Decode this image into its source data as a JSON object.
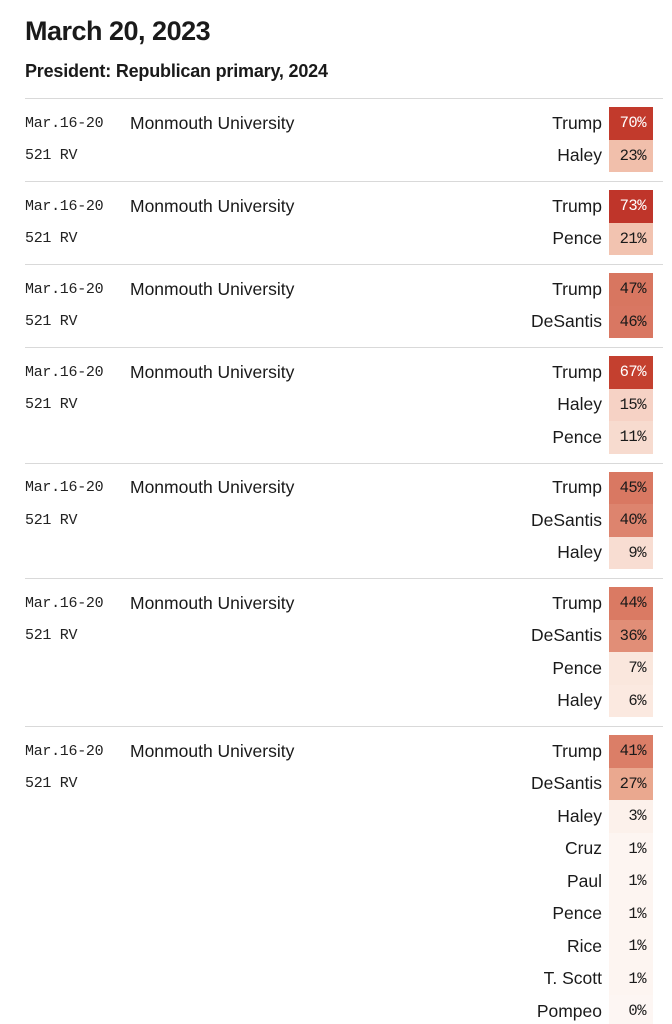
{
  "header": {
    "date": "March 20, 2023",
    "category": "President: Republican primary, 2024"
  },
  "colors": {
    "divider": "#d9d9d9",
    "dark_red": "#c23a2c",
    "text": "#1a1a1a"
  },
  "polls": [
    {
      "dates": "Mar.16-20",
      "sample": "521 RV",
      "pollster": "Monmouth University",
      "results": [
        {
          "candidate": "Trump",
          "value": "70%",
          "bg": "#c23a2c",
          "fg": "#ffffff"
        },
        {
          "candidate": "Haley",
          "value": "23%",
          "bg": "#f1bfab",
          "fg": "#1a1a1a"
        }
      ]
    },
    {
      "dates": "Mar.16-20",
      "sample": "521 RV",
      "pollster": "Monmouth University",
      "results": [
        {
          "candidate": "Trump",
          "value": "73%",
          "bg": "#bf352a",
          "fg": "#ffffff"
        },
        {
          "candidate": "Pence",
          "value": "21%",
          "bg": "#f2c3b0",
          "fg": "#1a1a1a"
        }
      ]
    },
    {
      "dates": "Mar.16-20",
      "sample": "521 RV",
      "pollster": "Monmouth University",
      "results": [
        {
          "candidate": "Trump",
          "value": "47%",
          "bg": "#d87660",
          "fg": "#1a1a1a"
        },
        {
          "candidate": "DeSantis",
          "value": "46%",
          "bg": "#d97762",
          "fg": "#1a1a1a"
        }
      ]
    },
    {
      "dates": "Mar.16-20",
      "sample": "521 RV",
      "pollster": "Monmouth University",
      "results": [
        {
          "candidate": "Trump",
          "value": "67%",
          "bg": "#c4402f",
          "fg": "#ffffff"
        },
        {
          "candidate": "Haley",
          "value": "15%",
          "bg": "#f6d2c5",
          "fg": "#1a1a1a"
        },
        {
          "candidate": "Pence",
          "value": "11%",
          "bg": "#f7dbcf",
          "fg": "#1a1a1a"
        }
      ]
    },
    {
      "dates": "Mar.16-20",
      "sample": "521 RV",
      "pollster": "Monmouth University",
      "results": [
        {
          "candidate": "Trump",
          "value": "45%",
          "bg": "#d97862",
          "fg": "#1a1a1a"
        },
        {
          "candidate": "DeSantis",
          "value": "40%",
          "bg": "#dd846e",
          "fg": "#1a1a1a"
        },
        {
          "candidate": "Haley",
          "value": "9%",
          "bg": "#f8ddd2",
          "fg": "#1a1a1a"
        }
      ]
    },
    {
      "dates": "Mar.16-20",
      "sample": "521 RV",
      "pollster": "Monmouth University",
      "results": [
        {
          "candidate": "Trump",
          "value": "44%",
          "bg": "#da7a63",
          "fg": "#1a1a1a"
        },
        {
          "candidate": "DeSantis",
          "value": "36%",
          "bg": "#e18e77",
          "fg": "#1a1a1a"
        },
        {
          "candidate": "Pence",
          "value": "7%",
          "bg": "#fae7dd",
          "fg": "#1a1a1a"
        },
        {
          "candidate": "Haley",
          "value": "6%",
          "bg": "#fbe9e0",
          "fg": "#1a1a1a"
        }
      ]
    },
    {
      "dates": "Mar.16-20",
      "sample": "521 RV",
      "pollster": "Monmouth University",
      "results": [
        {
          "candidate": "Trump",
          "value": "41%",
          "bg": "#db7e67",
          "fg": "#1a1a1a"
        },
        {
          "candidate": "DeSantis",
          "value": "27%",
          "bg": "#eaa88f",
          "fg": "#1a1a1a"
        },
        {
          "candidate": "Haley",
          "value": "3%",
          "bg": "#fcf1eb",
          "fg": "#1a1a1a"
        },
        {
          "candidate": "Cruz",
          "value": "1%",
          "bg": "#fdf5f1",
          "fg": "#1a1a1a"
        },
        {
          "candidate": "Paul",
          "value": "1%",
          "bg": "#fdf5f1",
          "fg": "#1a1a1a"
        },
        {
          "candidate": "Pence",
          "value": "1%",
          "bg": "#fdf5f1",
          "fg": "#1a1a1a"
        },
        {
          "candidate": "Rice",
          "value": "1%",
          "bg": "#fdf5f1",
          "fg": "#1a1a1a"
        },
        {
          "candidate": "T. Scott",
          "value": "1%",
          "bg": "#fdf5f1",
          "fg": "#1a1a1a"
        },
        {
          "candidate": "Pompeo",
          "value": "0%",
          "bg": "#fdf6f3",
          "fg": "#1a1a1a"
        }
      ]
    }
  ]
}
